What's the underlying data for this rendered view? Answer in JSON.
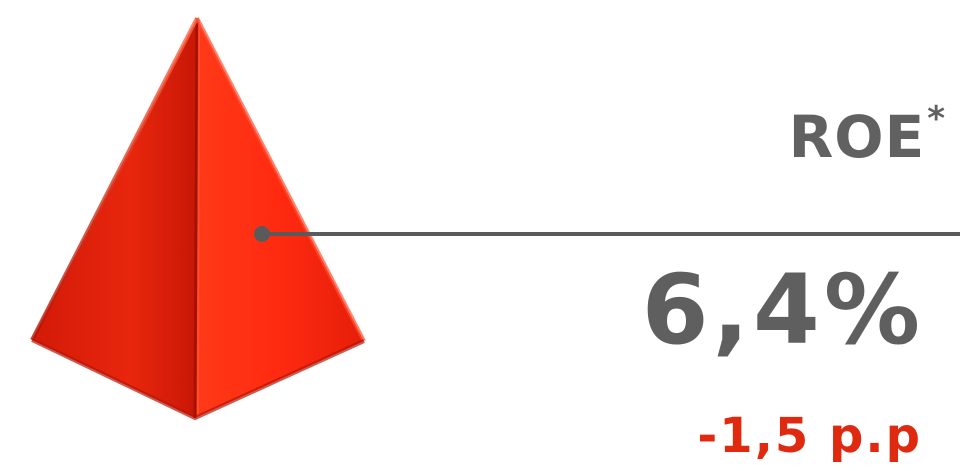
{
  "metric": {
    "label": "ROE",
    "label_suffix": "*",
    "value": "6,4%",
    "change": "-1,5 p.p"
  },
  "icons": {
    "pyramid": "red-pyramid-icon",
    "callout": "callout-line"
  },
  "colors": {
    "pyramid_red": "#e8220b",
    "text_gray": "#616161",
    "change_red": "#e02a10",
    "line_gray": "#5a5a5a"
  }
}
